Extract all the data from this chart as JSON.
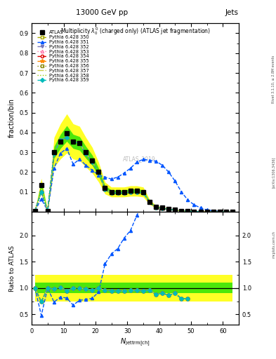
{
  "title_top": "13000 GeV pp",
  "title_right": "Jets",
  "plot_title": "Multiplicity $\\lambda_0^0$ (charged only) (ATLAS jet fragmentation)",
  "xlabel": "$N_{\\mathrm{jettrm[ch]}}$",
  "ylabel_main": "fraction/bin",
  "ylabel_ratio": "Ratio to ATLAS",
  "watermark": "ATLAS_2019",
  "rivet_text": "Rivet 3.1.10, ≥ 2.8M events",
  "arxiv_text": "[arXiv:1306.3436]",
  "mcplots_text": "mcplots.cern.ch",
  "x_data": [
    1,
    3,
    5,
    7,
    9,
    11,
    13,
    15,
    17,
    19,
    21,
    23,
    25,
    27,
    29,
    31,
    33,
    35,
    37,
    39,
    41,
    43,
    45,
    47,
    49,
    51,
    53,
    55,
    57,
    59,
    61,
    63
  ],
  "atlas_y": [
    0.005,
    0.135,
    0.005,
    0.3,
    0.355,
    0.395,
    0.355,
    0.345,
    0.3,
    0.26,
    0.2,
    0.12,
    0.1,
    0.1,
    0.1,
    0.105,
    0.105,
    0.1,
    0.05,
    0.025,
    0.02,
    0.015,
    0.01,
    0.005,
    0.005,
    0.002,
    0.001,
    0.001,
    0.0,
    0.0,
    0.0,
    0.0
  ],
  "py350_y": [
    0.005,
    0.1,
    0.005,
    0.295,
    0.36,
    0.375,
    0.355,
    0.345,
    0.295,
    0.25,
    0.2,
    0.115,
    0.095,
    0.095,
    0.095,
    0.1,
    0.1,
    0.095,
    0.048,
    0.022,
    0.018,
    0.013,
    0.009,
    0.004,
    0.004,
    0.002,
    0.001,
    0.001,
    0.0,
    0.0,
    0.0,
    0.0
  ],
  "py351_y": [
    0.005,
    0.065,
    0.005,
    0.22,
    0.295,
    0.32,
    0.24,
    0.265,
    0.235,
    0.21,
    0.185,
    0.175,
    0.165,
    0.175,
    0.195,
    0.22,
    0.25,
    0.265,
    0.26,
    0.255,
    0.235,
    0.2,
    0.155,
    0.1,
    0.06,
    0.035,
    0.02,
    0.01,
    0.005,
    0.002,
    0.0,
    0.0
  ],
  "py352_y": [
    0.005,
    0.1,
    0.005,
    0.295,
    0.36,
    0.375,
    0.355,
    0.345,
    0.295,
    0.25,
    0.2,
    0.115,
    0.095,
    0.095,
    0.095,
    0.1,
    0.1,
    0.095,
    0.048,
    0.022,
    0.018,
    0.013,
    0.009,
    0.004,
    0.004,
    0.002,
    0.001,
    0.001,
    0.0,
    0.0,
    0.0,
    0.0
  ],
  "py353_y": [
    0.005,
    0.1,
    0.005,
    0.295,
    0.36,
    0.375,
    0.355,
    0.345,
    0.295,
    0.25,
    0.2,
    0.115,
    0.095,
    0.095,
    0.095,
    0.1,
    0.1,
    0.095,
    0.048,
    0.022,
    0.018,
    0.013,
    0.009,
    0.004,
    0.004,
    0.002,
    0.001,
    0.001,
    0.0,
    0.0,
    0.0,
    0.0
  ],
  "py354_y": [
    0.005,
    0.1,
    0.005,
    0.295,
    0.36,
    0.375,
    0.355,
    0.345,
    0.295,
    0.25,
    0.2,
    0.115,
    0.095,
    0.095,
    0.095,
    0.1,
    0.1,
    0.095,
    0.048,
    0.022,
    0.018,
    0.013,
    0.009,
    0.004,
    0.004,
    0.002,
    0.001,
    0.001,
    0.0,
    0.0,
    0.0,
    0.0
  ],
  "py355_y": [
    0.005,
    0.1,
    0.005,
    0.295,
    0.36,
    0.375,
    0.355,
    0.345,
    0.295,
    0.25,
    0.2,
    0.115,
    0.095,
    0.095,
    0.095,
    0.1,
    0.1,
    0.095,
    0.048,
    0.022,
    0.018,
    0.013,
    0.009,
    0.004,
    0.004,
    0.002,
    0.001,
    0.001,
    0.0,
    0.0,
    0.0,
    0.0
  ],
  "py356_y": [
    0.005,
    0.1,
    0.005,
    0.295,
    0.36,
    0.375,
    0.355,
    0.345,
    0.295,
    0.25,
    0.2,
    0.115,
    0.095,
    0.095,
    0.095,
    0.1,
    0.1,
    0.095,
    0.048,
    0.022,
    0.018,
    0.013,
    0.009,
    0.004,
    0.004,
    0.002,
    0.001,
    0.001,
    0.0,
    0.0,
    0.0,
    0.0
  ],
  "py357_y": [
    0.005,
    0.1,
    0.005,
    0.295,
    0.36,
    0.375,
    0.355,
    0.345,
    0.295,
    0.25,
    0.2,
    0.115,
    0.095,
    0.095,
    0.095,
    0.1,
    0.1,
    0.095,
    0.048,
    0.022,
    0.018,
    0.013,
    0.009,
    0.004,
    0.004,
    0.002,
    0.001,
    0.001,
    0.0,
    0.0,
    0.0,
    0.0
  ],
  "py358_y": [
    0.005,
    0.1,
    0.005,
    0.295,
    0.36,
    0.375,
    0.355,
    0.345,
    0.295,
    0.25,
    0.2,
    0.115,
    0.095,
    0.095,
    0.095,
    0.1,
    0.1,
    0.095,
    0.048,
    0.022,
    0.018,
    0.013,
    0.009,
    0.004,
    0.004,
    0.002,
    0.001,
    0.001,
    0.0,
    0.0,
    0.0,
    0.0
  ],
  "py359_y": [
    0.005,
    0.1,
    0.005,
    0.295,
    0.36,
    0.375,
    0.355,
    0.345,
    0.295,
    0.25,
    0.2,
    0.115,
    0.095,
    0.095,
    0.095,
    0.1,
    0.1,
    0.095,
    0.048,
    0.022,
    0.018,
    0.013,
    0.009,
    0.004,
    0.004,
    0.002,
    0.001,
    0.001,
    0.0,
    0.0,
    0.0,
    0.0
  ],
  "xlim": [
    0,
    65
  ],
  "ylim_main": [
    0.0,
    0.95
  ],
  "ylim_ratio": [
    0.3,
    2.45
  ],
  "color_atlas": "#000000",
  "color_350": "#aaaa00",
  "color_351": "#0055ff",
  "color_352": "#7777bb",
  "color_353": "#ff77aa",
  "color_354": "#dd0000",
  "color_355": "#ff8800",
  "color_356": "#888800",
  "color_357": "#cccc44",
  "color_358": "#99cc00",
  "color_359": "#00bbbb",
  "band_yellow": 0.25,
  "band_green": 0.1
}
